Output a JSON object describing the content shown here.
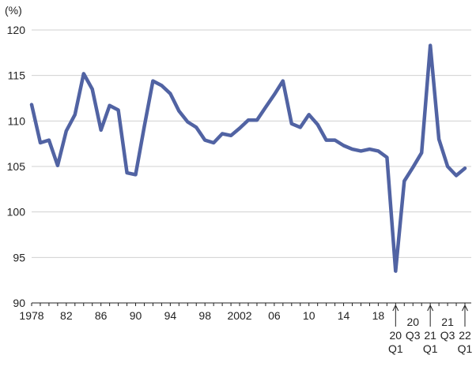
{
  "chart_data": {
    "type": "line",
    "y_label": "(%)",
    "categories": [
      "1978",
      null,
      null,
      null,
      "82",
      null,
      null,
      null,
      "86",
      null,
      null,
      null,
      "90",
      null,
      null,
      null,
      "94",
      null,
      null,
      null,
      "98",
      null,
      null,
      null,
      "2002",
      null,
      null,
      null,
      "06",
      null,
      null,
      null,
      "10",
      null,
      null,
      null,
      "14",
      null,
      null,
      null,
      "18",
      null,
      "20\nQ1",
      null,
      "20\nQ3",
      null,
      "21\nQ1",
      null,
      "21\nQ3",
      null,
      "22\nQ1"
    ],
    "series": [
      {
        "color": "#5163a3",
        "values": [
          111.8,
          107.6,
          107.9,
          105.1,
          108.9,
          110.7,
          115.2,
          113.5,
          109.0,
          111.7,
          111.2,
          104.3,
          104.1,
          109.4,
          114.4,
          113.9,
          113.0,
          111.1,
          109.9,
          109.3,
          107.9,
          107.6,
          108.6,
          108.4,
          109.2,
          110.1,
          110.1,
          111.5,
          112.9,
          114.4,
          109.7,
          109.3,
          110.7,
          109.6,
          107.9,
          107.9,
          107.3,
          106.9,
          106.7,
          106.9,
          106.7,
          106.0,
          93.5,
          103.4,
          104.9,
          106.5,
          118.3,
          108.0,
          105.0,
          104.0,
          104.8
        ]
      }
    ],
    "ylim": [
      90,
      120
    ],
    "yticks": [
      90,
      95,
      100,
      105,
      110,
      115,
      120
    ],
    "grid": true
  }
}
